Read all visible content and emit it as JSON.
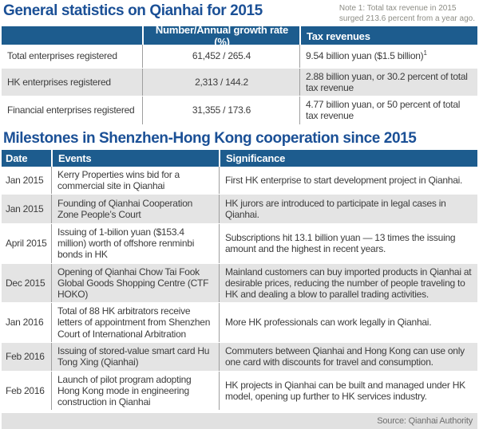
{
  "colors": {
    "header_blue": "#1d5c8e",
    "title_blue": "#1b5096",
    "stripe_gray": "#e4e4e4",
    "note_gray": "#8d8d85",
    "footer_gray": "#e1e1e1"
  },
  "stats_section": {
    "title": "General statistics on Qianhai for 2015",
    "note_line1": "Note 1: Total tax revenue in 2015",
    "note_line2": "surged 213.6 percent from a year ago.",
    "columns": [
      "",
      "Number/Annual growth rate (%)",
      "Tax revenues"
    ],
    "rows": [
      {
        "label": "Total enterprises registered",
        "value": "61,452 / 265.4",
        "tax": "9.54 billion yuan ($1.5 billion)",
        "tax_sup": "1"
      },
      {
        "label": "HK enterprises registered",
        "value": "2,313 / 144.2",
        "tax": "2.88 billion yuan, or 30.2 percent of total tax revenue",
        "tax_sup": ""
      },
      {
        "label": "Financial enterprises registered",
        "value": "31,355 / 173.6",
        "tax": "4.77 billion yuan, or 50 percent of total tax revenue",
        "tax_sup": ""
      }
    ]
  },
  "milestones_section": {
    "title": "Milestones in Shenzhen-Hong Kong cooperation since 2015",
    "columns": [
      "Date",
      "Events",
      "Significance"
    ],
    "rows": [
      {
        "date": "Jan 2015",
        "event": "Kerry Properties wins bid for a commercial site in Qianhai",
        "significance": "First HK enterprise to start development project in Qianhai."
      },
      {
        "date": "Jan 2015",
        "event": "Founding of Qianhai Cooperation Zone People’s Court",
        "significance": "HK jurors are introduced to participate in legal cases in Qianhai."
      },
      {
        "date": "April 2015",
        "event": "Issuing of 1-bilion yuan ($153.4 million) worth of offshore renminbi bonds in HK",
        "significance": "Subscriptions hit 13.1 billion yuan — 13 times the issuing amount and the highest in recent years."
      },
      {
        "date": "Dec 2015",
        "event": "Opening of Qianhai Chow Tai Fook Global Goods Shopping Centre (CTF HOKO)",
        "significance": "Mainland customers can buy imported products in Qianhai at desirable prices, reducing the number of people traveling to HK and dealing a blow to parallel trading activities."
      },
      {
        "date": "Jan 2016",
        "event": "Total of 88 HK arbitrators receive letters of appointment from Shenzhen Court of International Arbitration",
        "significance": "More HK professionals can work legally in Qianhai."
      },
      {
        "date": "Feb 2016",
        "event": "Issuing of stored-value smart card Hu Tong Xing (Qianhai)",
        "significance": "Commuters between Qianhai and Hong Kong can use only one card with discounts for travel and consumption."
      },
      {
        "date": "Feb 2016",
        "event": "Launch of pilot program adopting Hong Kong mode in engineering construction in Qianhai",
        "significance": "HK projects in Qianhai can be built and managed under HK model, opening up further to HK services industry."
      }
    ]
  },
  "footer": {
    "source": "Source: Qianhai Authority"
  }
}
